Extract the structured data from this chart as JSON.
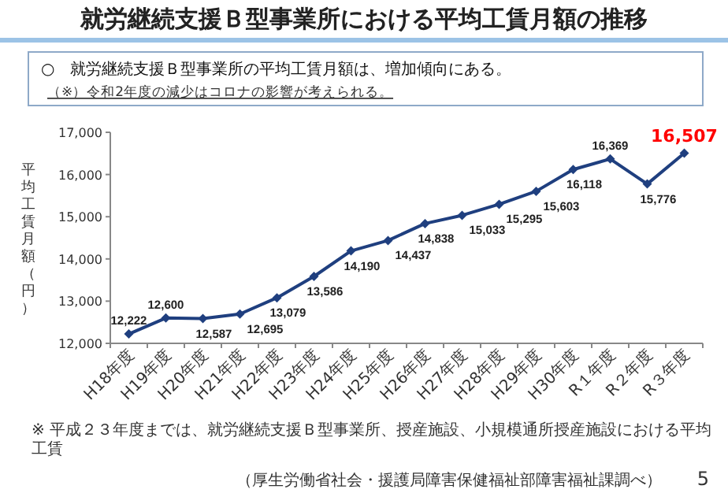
{
  "chart_data": {
    "type": "line",
    "title": "就労継続支援Ｂ型事業所における平均工賃月額の推移",
    "subtitle": "○　就労継続支援Ｂ型事業所の平均工賃月額は、増加傾向にある。",
    "ylabel": "平均工賃月額（円）",
    "categories": [
      "H18年度",
      "H19年度",
      "H20年度",
      "H21年度",
      "H22年度",
      "H23年度",
      "H24年度",
      "H25年度",
      "H26年度",
      "H27年度",
      "H28年度",
      "H29年度",
      "H30年度",
      "R１年度",
      "R２年度",
      "R３年度"
    ],
    "series": [
      {
        "color": "#1f3f7f",
        "values": [
          12222,
          12600,
          12587,
          12695,
          13079,
          13586,
          14190,
          14437,
          14838,
          15033,
          15295,
          15603,
          16118,
          16369,
          15776,
          16507
        ],
        "value_labels": [
          "12,222",
          "12,600",
          "12,587",
          "12,695",
          "13,079",
          "13,586",
          "14,190",
          "14,437",
          "14,838",
          "15,033",
          "15,295",
          "15,603",
          "16,118",
          "16,369",
          "15,776",
          null
        ]
      }
    ],
    "ylim": [
      12000,
      17000
    ],
    "yticks": [
      {
        "value": 12000,
        "label": "12,000"
      },
      {
        "value": 13000,
        "label": "13,000"
      },
      {
        "value": 14000,
        "label": "14,000"
      },
      {
        "value": 15000,
        "label": "15,000"
      },
      {
        "value": 16000,
        "label": "16,000"
      },
      {
        "value": 17000,
        "label": "17,000"
      }
    ],
    "marker": "diamond",
    "grid": false,
    "annotations": [
      "（※）令和2年度の減少はコロナの影響が考えられる。",
      {
        "text": "16,507",
        "x": "R３年度",
        "y": 16507
      },
      "※ 平成２３年度までは、就労継続支援Ｂ型事業所、授産施設、小規模通所授産施設における平均工賃",
      "（厚生労働省社会・援護局障害保健福祉部障害福祉課調べ）",
      "5"
    ]
  }
}
